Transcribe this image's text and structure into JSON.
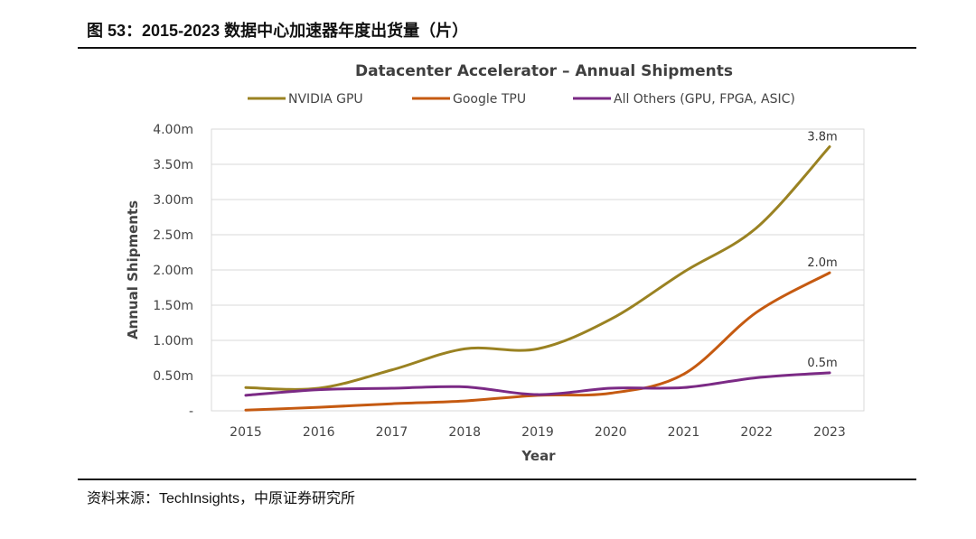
{
  "figure_title": "图 53：2015-2023 数据中心加速器年度出货量（片）",
  "source": "资料来源：TechInsights，中原证券研究所",
  "colors": {
    "nvidia": "#9a8222",
    "google": "#c55a11",
    "others": "#7b2a85",
    "grid": "#d9d9d9"
  },
  "chart_data": {
    "type": "line",
    "title": "Datacenter Accelerator – Annual Shipments",
    "xlabel": "Year",
    "ylabel": "Annual Shipments",
    "ylim": [
      0,
      4.0
    ],
    "yticks": [
      0,
      0.5,
      1.0,
      1.5,
      2.0,
      2.5,
      3.0,
      3.5,
      4.0
    ],
    "ytick_labels": [
      "-",
      "0.50m",
      "1.00m",
      "1.50m",
      "2.00m",
      "2.50m",
      "3.00m",
      "3.50m",
      "4.00m"
    ],
    "categories": [
      "2015",
      "2016",
      "2017",
      "2018",
      "2019",
      "2020",
      "2021",
      "2022",
      "2023"
    ],
    "grid": true,
    "legend_position": "top",
    "series": [
      {
        "name": "NVIDIA GPU",
        "color_key": "nvidia",
        "values": [
          0.33,
          0.32,
          0.58,
          0.88,
          0.88,
          1.3,
          1.97,
          2.6,
          3.75
        ],
        "end_label": "3.8m"
      },
      {
        "name": "Google TPU",
        "color_key": "google",
        "values": [
          0.01,
          0.05,
          0.1,
          0.14,
          0.22,
          0.25,
          0.52,
          1.4,
          1.96
        ],
        "end_label": "2.0m"
      },
      {
        "name": "All Others (GPU, FPGA, ASIC)",
        "color_key": "others",
        "values": [
          0.22,
          0.3,
          0.32,
          0.34,
          0.23,
          0.32,
          0.33,
          0.47,
          0.54
        ],
        "end_label": "0.5m"
      }
    ]
  }
}
